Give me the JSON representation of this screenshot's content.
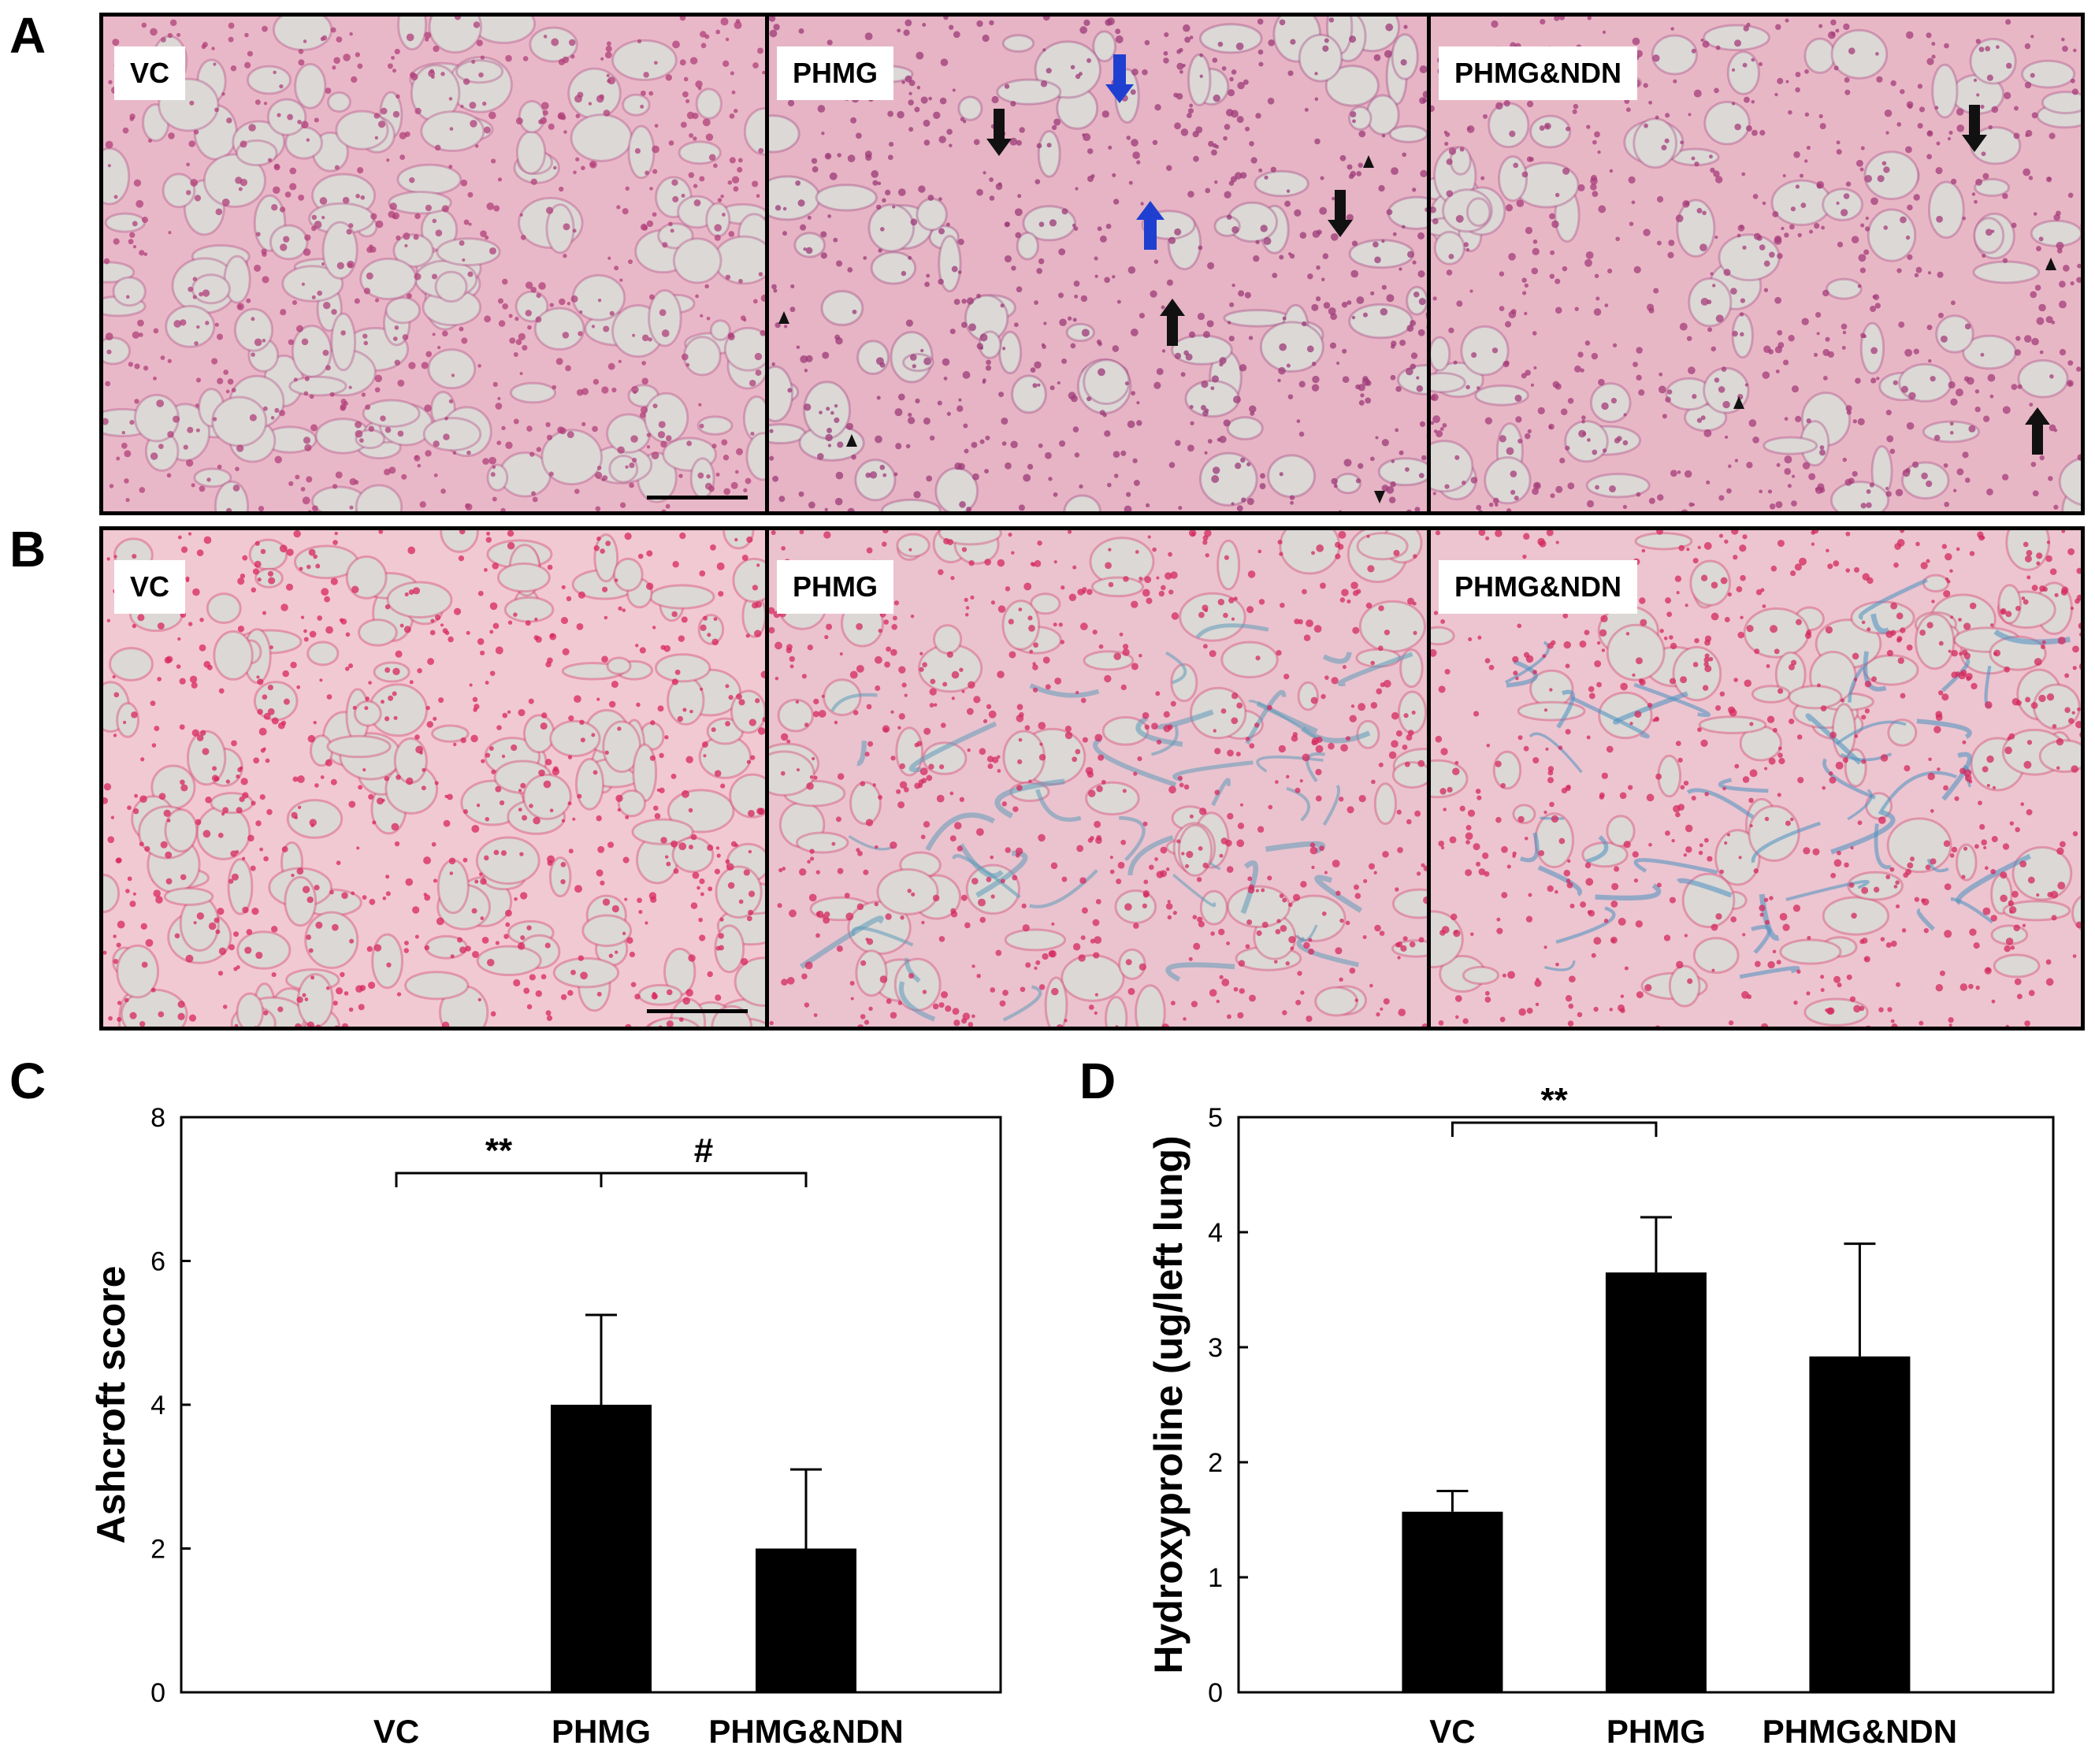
{
  "panel_labels": {
    "a": "A",
    "b": "B",
    "c": "C",
    "d": "D"
  },
  "micrographs": {
    "row_a": {
      "stain": "H&E",
      "tiles": [
        {
          "label": "VC",
          "base": "#e9b8c8",
          "cell": "#b0407a"
        },
        {
          "label": "PHMG",
          "base": "#e6b4c4",
          "cell": "#9c3a78"
        },
        {
          "label": "PHMG&NDN",
          "base": "#e8b7c6",
          "cell": "#a63c7a"
        }
      ],
      "markers": [
        "black-arrow",
        "blue-arrow",
        "arrowhead"
      ]
    },
    "row_b": {
      "stain": "Masson trichrome",
      "tiles": [
        {
          "label": "VC",
          "base": "#f1c9d3",
          "cell": "#d8265e"
        },
        {
          "label": "PHMG",
          "base": "#eac3cf",
          "cell": "#d42a60",
          "collagen": "#5f9ab8"
        },
        {
          "label": "PHMG&NDN",
          "base": "#ecc5d0",
          "cell": "#d4285e",
          "collagen": "#4a8fc0"
        }
      ]
    }
  },
  "chart_data": [
    {
      "type": "bar",
      "panel": "C",
      "categories": [
        "VC",
        "PHMG",
        "PHMG&NDN"
      ],
      "values": [
        0,
        4.0,
        2.0
      ],
      "errors": [
        0,
        1.25,
        1.1
      ],
      "ylabel": "Ashcroft score",
      "ylim": [
        0,
        8
      ],
      "yticks": [
        "0",
        "2",
        "4",
        "6",
        "8"
      ],
      "bar_color": "#000000",
      "grid": false,
      "significance": [
        {
          "from": 0,
          "to": 1,
          "label": "**"
        },
        {
          "from": 1,
          "to": 2,
          "label": "#"
        }
      ]
    },
    {
      "type": "bar",
      "panel": "D",
      "categories": [
        "VC",
        "PHMG",
        "PHMG&NDN"
      ],
      "values": [
        1.57,
        3.65,
        2.92
      ],
      "errors": [
        0.18,
        0.48,
        0.98
      ],
      "ylabel": "Hydroxyproline (ug/left lung)",
      "ylim": [
        0,
        5
      ],
      "yticks": [
        "0",
        "1",
        "2",
        "3",
        "4",
        "5"
      ],
      "bar_color": "#000000",
      "grid": false,
      "significance": [
        {
          "from": 0,
          "to": 1,
          "label": "**"
        }
      ]
    }
  ]
}
